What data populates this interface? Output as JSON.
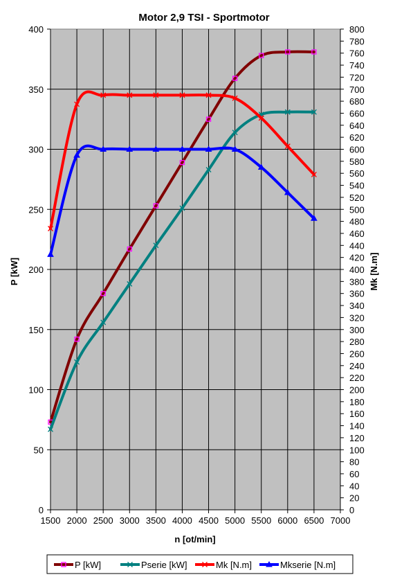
{
  "chart_data": {
    "type": "line",
    "title": "Motor 2,9 TSI - Sportmotor",
    "xlabel": "n [ot/min]",
    "ylabel": "P [kW]",
    "y2label": "Mk [N.m]",
    "xlim": [
      1500,
      7000
    ],
    "x_ticks": [
      1500,
      2000,
      2500,
      3000,
      3500,
      4000,
      4500,
      5000,
      5500,
      6000,
      6500,
      7000
    ],
    "ylim": [
      0,
      400
    ],
    "y_ticks": [
      0,
      50,
      100,
      150,
      200,
      250,
      300,
      350,
      400
    ],
    "y2lim": [
      0,
      800
    ],
    "y2_ticks": [
      0,
      20,
      40,
      60,
      80,
      100,
      120,
      140,
      160,
      180,
      200,
      220,
      240,
      260,
      280,
      300,
      320,
      340,
      360,
      380,
      400,
      420,
      440,
      460,
      480,
      500,
      520,
      540,
      560,
      580,
      600,
      620,
      640,
      660,
      680,
      700,
      720,
      740,
      760,
      780,
      800
    ],
    "grid": true,
    "legend_position": "bottom",
    "x": [
      1500,
      2000,
      2500,
      3000,
      3500,
      4000,
      4500,
      5000,
      5500,
      6000,
      6500
    ],
    "series": [
      {
        "name": "P [kW]",
        "axis": "left",
        "color": "#800000",
        "marker": "square",
        "marker_color": "#ff00ff",
        "values": [
          73,
          142,
          180,
          217,
          253,
          289,
          325,
          359,
          378,
          381,
          381
        ]
      },
      {
        "name": "Pserie [kW]",
        "axis": "left",
        "color": "#008080",
        "marker": "x",
        "marker_color": "#008080",
        "values": [
          67,
          123,
          156,
          188,
          220,
          251,
          283,
          314,
          329,
          331,
          331
        ]
      },
      {
        "name": "Mk [N.m]",
        "axis": "right",
        "color": "#ff0000",
        "marker": "x",
        "marker_color": "#ff0000",
        "values": [
          468,
          675,
          690,
          690,
          690,
          690,
          690,
          685,
          652,
          605,
          558
        ]
      },
      {
        "name": "Mkserie [N.m]",
        "axis": "right",
        "color": "#0000ff",
        "marker": "triangle",
        "marker_color": "#0000ff",
        "values": [
          425,
          590,
          600,
          600,
          600,
          600,
          600,
          600,
          570,
          528,
          485
        ]
      }
    ]
  }
}
